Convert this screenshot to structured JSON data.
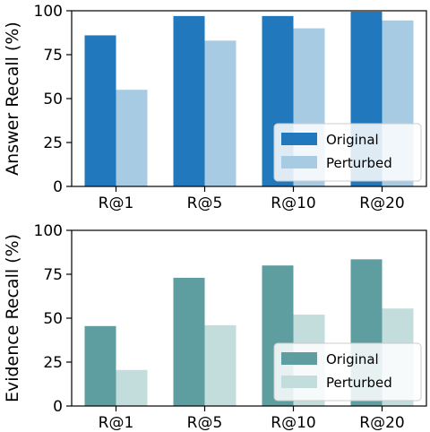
{
  "chart_data": [
    {
      "type": "bar",
      "categories": [
        "R@1",
        "R@5",
        "R@10",
        "R@20"
      ],
      "ylabel": "Answer Recall (%)",
      "ylim": [
        0,
        100
      ],
      "yticks": [
        "0",
        "25",
        "50",
        "75",
        "100"
      ],
      "grid": false,
      "legend_position": "bottom-right",
      "series": [
        {
          "name": "Original",
          "color": "#2178bd",
          "values": [
            86,
            97,
            97,
            99.5
          ]
        },
        {
          "name": "Perturbed",
          "color": "#a6cbe3",
          "values": [
            55,
            83,
            90,
            94.5
          ]
        }
      ]
    },
    {
      "type": "bar",
      "categories": [
        "R@1",
        "R@5",
        "R@10",
        "R@20"
      ],
      "ylabel": "Evidence Recall (%)",
      "ylim": [
        0,
        100
      ],
      "yticks": [
        "0",
        "25",
        "50",
        "75",
        "100"
      ],
      "grid": false,
      "legend_position": "bottom-right",
      "series": [
        {
          "name": "Original",
          "color": "#5f9ea0",
          "values": [
            45.5,
            73,
            80,
            83.5
          ]
        },
        {
          "name": "Perturbed",
          "color": "#c3dcdc",
          "values": [
            20.5,
            46,
            52,
            55.5
          ]
        }
      ]
    }
  ]
}
